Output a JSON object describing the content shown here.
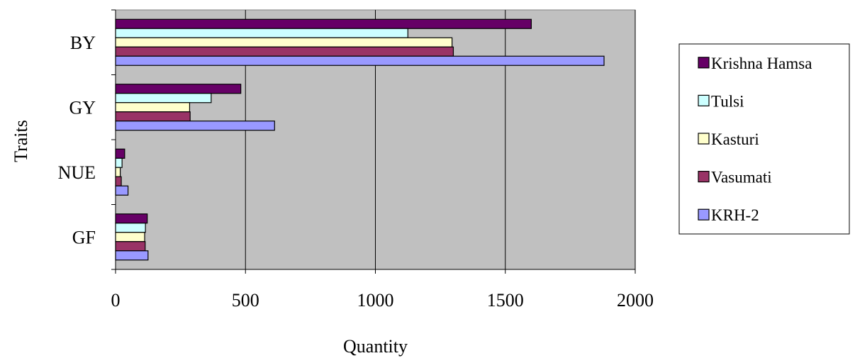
{
  "chart_data": {
    "type": "bar",
    "orientation": "horizontal",
    "categories": [
      "BY",
      "GY",
      "NUE",
      "GF"
    ],
    "series": [
      {
        "name": "Krishna Hamsa",
        "color": "#660066",
        "values": [
          1600,
          482,
          35,
          122
        ]
      },
      {
        "name": "Tulsi",
        "color": "#CCFFFF",
        "values": [
          1125,
          368,
          25,
          115
        ]
      },
      {
        "name": "Kasturi",
        "color": "#FFFFCC",
        "values": [
          1295,
          285,
          18,
          112
        ]
      },
      {
        "name": "Vasumati",
        "color": "#993366",
        "values": [
          1300,
          287,
          22,
          114
        ]
      },
      {
        "name": "KRH-2",
        "color": "#9999FF",
        "values": [
          1880,
          612,
          48,
          125
        ]
      }
    ],
    "xlabel": "Quantity",
    "ylabel": "Traits",
    "xlim": [
      0,
      2000
    ],
    "xticks": [
      "0",
      "500",
      "1000",
      "1500",
      "2000"
    ],
    "plot_background": "#C0C0C0",
    "grid": "vertical",
    "legend_position": "right"
  }
}
